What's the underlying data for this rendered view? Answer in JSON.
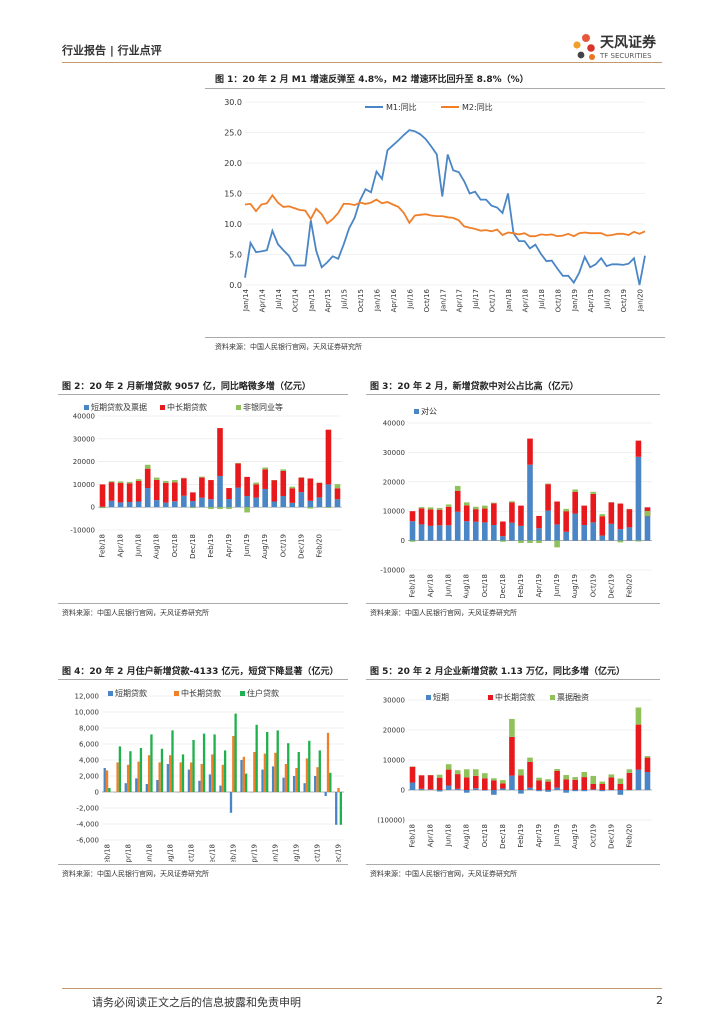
{
  "header": {
    "section": "行业报告 | 行业点评"
  },
  "logo": {
    "name": "天风证券",
    "sub": "TF SECURITIES"
  },
  "footer": {
    "disclaimer": "请务必阅读正文之后的信息披露和免责申明",
    "page": "2"
  },
  "colors": {
    "blue": "#4a86c5",
    "orange": "#f07f2a",
    "red": "#e8191c",
    "green": "#8fc25a",
    "green2": "#1fb14d",
    "gray": "#a6a6a6"
  },
  "figures": {
    "f1": {
      "title": "图 1：20 年 2 月 M1 增速反弹至 4.8%，M2 增速环比回升至 8.8%（%）",
      "source": "资料来源：中国人民银行官网，天风证券研究所"
    },
    "f2": {
      "title": "图 2：20 年 2 月新增贷款 9057 亿，同比略微多增（亿元）",
      "source": "资料来源：中国人民银行官网，天风证券研究所"
    },
    "f3": {
      "title": "图 3：20 年 2 月，新增贷款中对公占比高（亿元）",
      "source": "资料来源：中国人民银行官网，天风证券研究所"
    },
    "f4": {
      "title": "图 4：20 年 2 月住户新增贷款-4133 亿元，短贷下降显著（亿元）",
      "source": "资料来源：中国人民银行官网，天风证券研究所"
    },
    "f5": {
      "title": "图 5：20 年 2 月企业新增贷款 1.13 万亿，同比多增（亿元）",
      "source": "资料来源：中国人民银行官网，天风证券研究所"
    }
  },
  "chart_data": [
    {
      "type": "line",
      "xticks": [
        "Jan/14",
        "Apr/14",
        "Jul/14",
        "Oct/14",
        "Jan/15",
        "Apr/15",
        "Jul/15",
        "Oct/15",
        "Jan/16",
        "Apr/16",
        "Jul/16",
        "Oct/16",
        "Jan/17",
        "Apr/17",
        "Jul/17",
        "Oct/17",
        "Jan/18",
        "Apr/18",
        "Jul/18",
        "Oct/18",
        "Jan/19",
        "Apr/19",
        "Jul/19",
        "Oct/19",
        "Jan/20"
      ],
      "ylim": [
        0,
        30
      ],
      "yticks": [
        "0.0",
        "5.0",
        "10.0",
        "15.0",
        "20.0",
        "25.0",
        "30.0"
      ],
      "legend": "top-center",
      "series": [
        {
          "name": "M1:同比",
          "values": [
            1.2,
            6.9,
            5.4,
            5.5,
            5.7,
            8.9,
            6.7,
            5.7,
            4.8,
            3.2,
            3.2,
            3.2,
            10.6,
            5.6,
            2.9,
            3.7,
            4.7,
            4.3,
            6.6,
            9.3,
            11.0,
            13.9,
            15.7,
            15.2,
            18.6,
            17.4,
            22.1,
            22.9,
            23.7,
            24.6,
            25.4,
            25.2,
            24.7,
            23.9,
            22.7,
            21.4,
            14.5,
            21.4,
            18.8,
            18.5,
            17.0,
            15.0,
            15.3,
            14.0,
            14.0,
            13.0,
            12.7,
            11.8,
            15.0,
            8.5,
            7.2,
            7.2,
            6.0,
            6.6,
            5.1,
            3.9,
            4.0,
            2.7,
            1.5,
            1.5,
            0.4,
            2.0,
            4.6,
            2.9,
            3.4,
            4.4,
            3.1,
            3.4,
            3.4,
            3.3,
            3.5,
            4.4,
            0.0,
            4.8
          ]
        },
        {
          "name": "M2:同比",
          "values": [
            13.2,
            13.3,
            12.1,
            13.2,
            13.4,
            14.7,
            13.5,
            12.8,
            12.9,
            12.6,
            12.3,
            12.2,
            10.8,
            12.5,
            11.6,
            10.1,
            10.8,
            11.8,
            13.3,
            13.3,
            13.1,
            13.5,
            13.3,
            13.5,
            14.0,
            13.4,
            13.6,
            13.2,
            12.8,
            11.8,
            10.2,
            11.4,
            11.5,
            11.6,
            11.4,
            11.3,
            11.3,
            11.1,
            11.0,
            10.6,
            9.6,
            9.4,
            9.2,
            8.9,
            9.0,
            8.8,
            9.1,
            8.2,
            8.6,
            8.5,
            8.3,
            8.5,
            8.0,
            8.0,
            8.3,
            8.2,
            8.3,
            8.0,
            8.1,
            8.4,
            8.0,
            8.5,
            8.6,
            8.5,
            8.5,
            8.5,
            8.1,
            8.2,
            8.4,
            8.4,
            8.2,
            8.7,
            8.4,
            8.8
          ]
        }
      ]
    },
    {
      "type": "bar",
      "stacked": true,
      "xticks": [
        "Feb/18",
        "Apr/18",
        "Jun/18",
        "Aug/18",
        "Oct/18",
        "Dec/18",
        "Feb/19",
        "Apr/19",
        "Jun/19",
        "Aug/19",
        "Oct/19",
        "Dec/19",
        "Feb/20"
      ],
      "ylim": [
        -10000,
        40000
      ],
      "yticks": [
        "-10000",
        "0",
        "10000",
        "20000",
        "30000",
        "40000"
      ],
      "legend": "top",
      "series": [
        {
          "name": "短期贷款及票据",
          "values": [
            200,
            2800,
            2100,
            2300,
            2500,
            8400,
            3100,
            2000,
            2600,
            5000,
            2700,
            4200,
            3500,
            13700,
            3600,
            8600,
            4900,
            4200,
            8000,
            2500,
            4900,
            1900,
            6600,
            2800,
            4300,
            10000,
            3500
          ]
        },
        {
          "name": "中长期贷款",
          "values": [
            9800,
            8200,
            8500,
            8200,
            9000,
            8500,
            8900,
            8700,
            8300,
            7700,
            3800,
            8800,
            8400,
            21000,
            4800,
            10600,
            8400,
            5800,
            8600,
            9400,
            11000,
            6400,
            6400,
            9800,
            6400,
            24000,
            4800
          ]
        },
        {
          "name": "非银同业等",
          "values": [
            -400,
            400,
            700,
            600,
            800,
            1700,
            1000,
            800,
            1000,
            200,
            -400,
            400,
            -800,
            -800,
            -800,
            200,
            -2300,
            800,
            800,
            0,
            700,
            700,
            100,
            -600,
            100,
            -300,
            1800
          ]
        }
      ]
    },
    {
      "type": "bar",
      "stacked": true,
      "xticks": [
        "Feb/18",
        "Apr/18",
        "Jun/18",
        "Aug/18",
        "Oct/18",
        "Dec/18",
        "Feb/19",
        "Apr/19",
        "Jun/19",
        "Aug/19",
        "Oct/19",
        "Dec/19",
        "Feb/20"
      ],
      "ylim": [
        -10000,
        40000
      ],
      "yticks": [
        "-10000",
        "0",
        "10000",
        "20000",
        "30000",
        "40000"
      ],
      "legend": "top-left",
      "series": [
        {
          "name": "对公",
          "values": [
            6600,
            5500,
            5000,
            5200,
            5200,
            9800,
            6600,
            6400,
            6200,
            5300,
            1500,
            6100,
            5000,
            25800,
            4200,
            10200,
            5500,
            3000,
            9200,
            5300,
            6200,
            1700,
            5700,
            3900,
            4500,
            28500,
            11300
          ]
        }
      ]
    },
    {
      "type": "bar",
      "xticks": [
        "Feb/18",
        "Apr/18",
        "Jun/18",
        "Aug/18",
        "Oct/18",
        "Dec/18",
        "Feb/19",
        "Apr/19",
        "Jun/19",
        "Aug/19",
        "Oct/19",
        "Dec/19",
        "Feb/20"
      ],
      "ylim": [
        -6000,
        12000
      ],
      "yticks": [
        "-6,000",
        "-4,000",
        "-2,000",
        "0",
        "2,000",
        "4,000",
        "6,000",
        "8,000",
        "10,000",
        "12,000"
      ],
      "legend": "top-left",
      "series": [
        {
          "name": "短期贷款",
          "values": [
            3000,
            0,
            1100,
            1700,
            1000,
            1500,
            3500,
            0,
            2800,
            1400,
            2200,
            800,
            -2600,
            4000,
            0,
            2800,
            3200,
            1800,
            2000,
            1100,
            2000,
            -500,
            -4100
          ]
        },
        {
          "name": "中长期贷款",
          "values": [
            2700,
            3700,
            3400,
            3800,
            4600,
            3700,
            4600,
            3700,
            3700,
            3500,
            4700,
            3400,
            7000,
            4400,
            5000,
            4800,
            4900,
            3500,
            3000,
            4200,
            3100,
            7400,
            500
          ]
        },
        {
          "name": "住户贷款",
          "values": [
            500,
            5700,
            5100,
            5500,
            7200,
            5400,
            7700,
            4700,
            6500,
            7300,
            7200,
            5200,
            9800,
            2300,
            8400,
            7500,
            7700,
            6100,
            5000,
            6400,
            5200,
            2400,
            -4100
          ]
        }
      ]
    },
    {
      "type": "bar",
      "stacked": true,
      "xticks": [
        "Feb/18",
        "Apr/18",
        "Jun/18",
        "Aug/18",
        "Oct/18",
        "Dec/18",
        "Feb/19",
        "Apr/19",
        "Jun/19",
        "Aug/19",
        "Oct/19",
        "Dec/19",
        "Feb/20"
      ],
      "ylim": [
        -10000,
        30000
      ],
      "yticks": [
        "(10000)",
        "0",
        "10000",
        "20000",
        "30000"
      ],
      "legend": "top",
      "series": [
        {
          "name": "短期",
          "values": [
            2500,
            400,
            200,
            -500,
            1500,
            400,
            -900,
            600,
            -200,
            -1600,
            500,
            4800,
            -1200,
            800,
            -400,
            -600,
            800,
            -900,
            -400,
            -400,
            200,
            -400,
            0,
            -1600,
            0,
            6800,
            6000
          ]
        },
        {
          "name": "中长期贷款",
          "values": [
            5300,
            4500,
            4800,
            4100,
            5300,
            4900,
            4200,
            4100,
            3900,
            3200,
            1700,
            12900,
            4900,
            8600,
            3200,
            2800,
            5600,
            3500,
            3400,
            4300,
            1800,
            2000,
            4200,
            2000,
            5700,
            15000,
            4800
          ]
        },
        {
          "name": "票据融资",
          "values": [
            0,
            -200,
            0,
            1000,
            1800,
            1300,
            2700,
            2200,
            1700,
            700,
            1100,
            6000,
            2000,
            1400,
            900,
            800,
            600,
            1500,
            900,
            1700,
            2700,
            800,
            1000,
            1800,
            1200,
            5700,
            500
          ]
        }
      ]
    }
  ]
}
